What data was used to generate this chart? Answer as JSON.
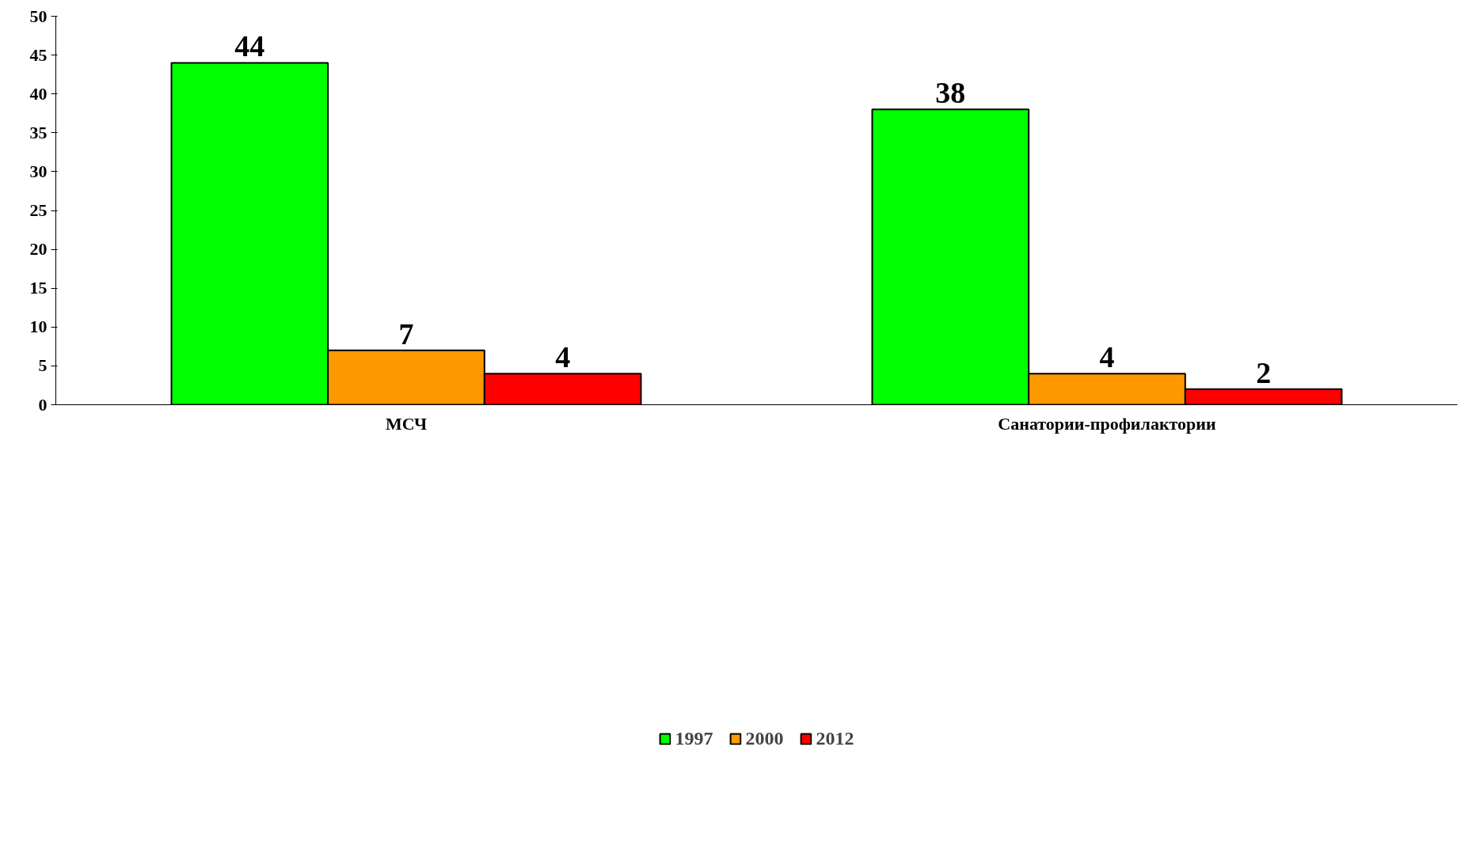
{
  "chart_data": {
    "type": "bar",
    "categories": [
      "МСЧ",
      "Санатории-профилактории"
    ],
    "series": [
      {
        "name": "1997",
        "color": "#00ff00",
        "values": [
          44,
          38
        ]
      },
      {
        "name": "2000",
        "color": "#ff9900",
        "values": [
          7,
          4
        ]
      },
      {
        "name": "2012",
        "color": "#ff0000",
        "values": [
          4,
          2
        ]
      }
    ],
    "ylim": [
      0,
      50
    ],
    "yticks": [
      0,
      5,
      10,
      15,
      20,
      25,
      30,
      35,
      40,
      45,
      50
    ],
    "grid": false,
    "legend": "bottom",
    "data_labels": true
  }
}
